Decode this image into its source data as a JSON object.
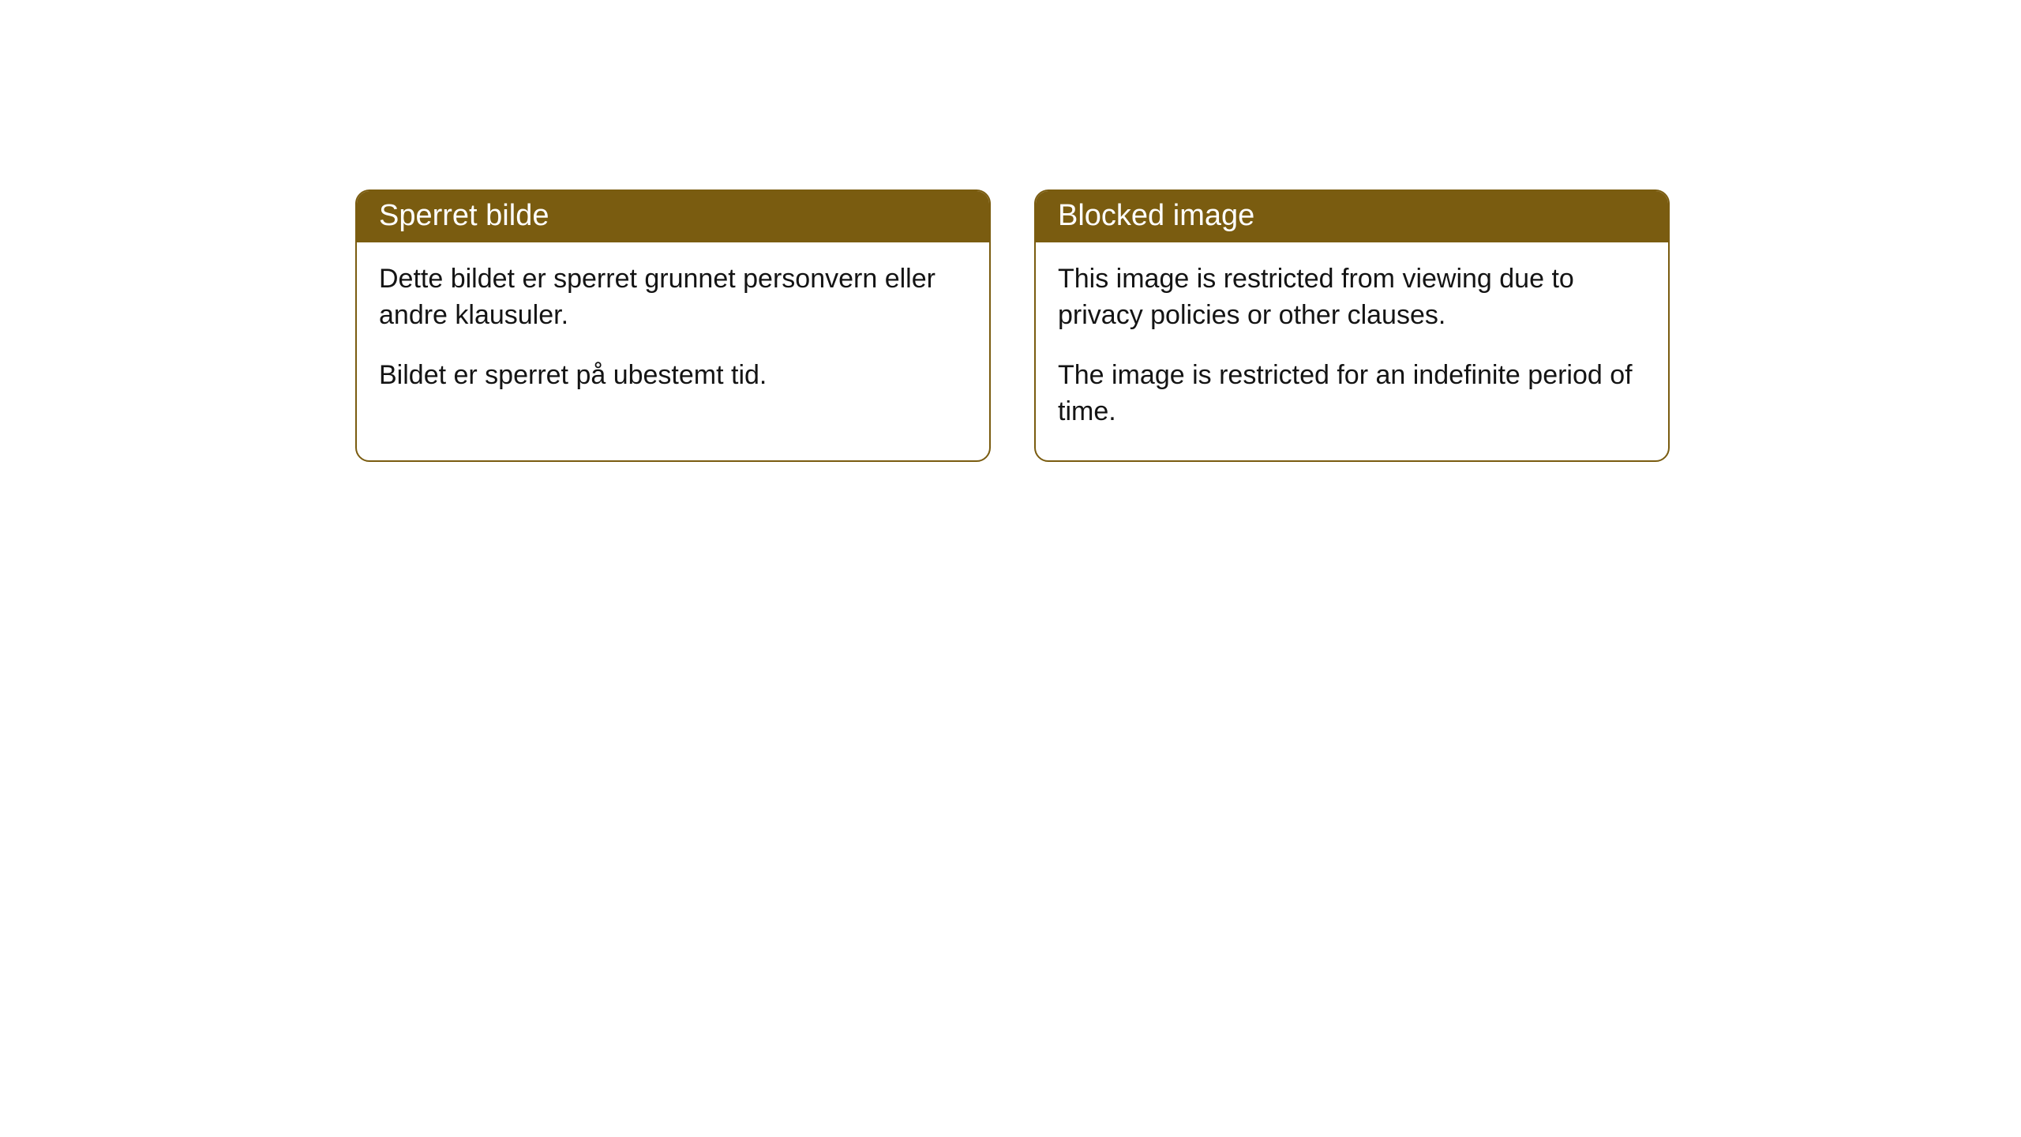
{
  "cards": [
    {
      "title": "Sperret bilde",
      "paragraph1": "Dette bildet er sperret grunnet personvern eller andre klausuler.",
      "paragraph2": "Bildet er sperret på ubestemt tid."
    },
    {
      "title": "Blocked image",
      "paragraph1": "This image is restricted from viewing due to privacy policies or other clauses.",
      "paragraph2": "The image is restricted for an indefinite period of time."
    }
  ],
  "styling": {
    "header_bg_color": "#7a5c10",
    "header_text_color": "#ffffff",
    "border_color": "#7a5c10",
    "body_text_color": "#141414",
    "page_bg_color": "#ffffff",
    "border_radius": 18,
    "header_fontsize": 38,
    "body_fontsize": 34
  }
}
